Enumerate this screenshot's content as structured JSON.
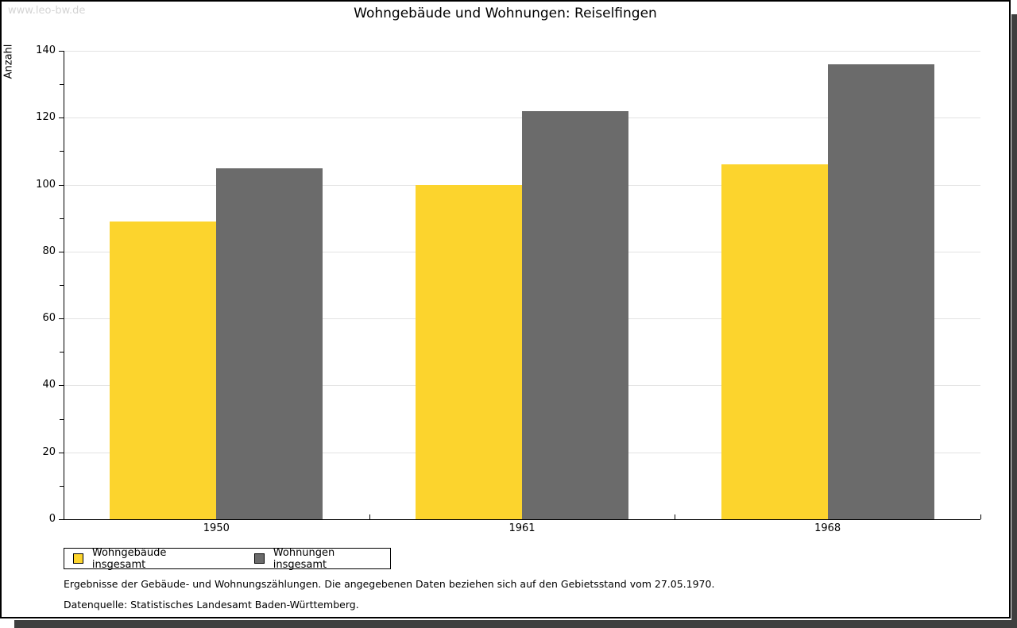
{
  "watermark": "www.leo-bw.de",
  "header": {
    "title": "Wohngebäude und Wohnungen: Reiselfingen"
  },
  "chart_data": {
    "type": "bar",
    "title": "Wohngebäude und Wohnungen: Reiselfingen",
    "xlabel": "",
    "ylabel": "Anzahl",
    "categories": [
      "1950",
      "1961",
      "1968"
    ],
    "series": [
      {
        "name": "Wohngebäude insgesamt",
        "color": "#fcd42d",
        "values": [
          89,
          100,
          106
        ]
      },
      {
        "name": "Wohnungen insgesamt",
        "color": "#6b6b6b",
        "values": [
          105,
          122,
          136
        ]
      }
    ],
    "ylim": [
      0,
      140
    ],
    "ytick_major": 20,
    "ytick_minor": 10,
    "grid": "horizontal-major",
    "legend_position": "bottom-left"
  },
  "footer": {
    "line1": "Ergebnisse der Gebäude- und Wohnungszählungen. Die angegebenen Daten beziehen sich auf den Gebietsstand vom 27.05.1970.",
    "line2": "Datenquelle: Statistisches Landesamt Baden-Württemberg."
  },
  "colors": {
    "bar_yellow": "#fcd42d",
    "bar_gray": "#6b6b6b",
    "gridline": "#e3e3e3",
    "axis": "#000000",
    "watermark": "#d4d4d4",
    "frame_shadow": "#3f3f3f",
    "background": "#ffffff"
  }
}
